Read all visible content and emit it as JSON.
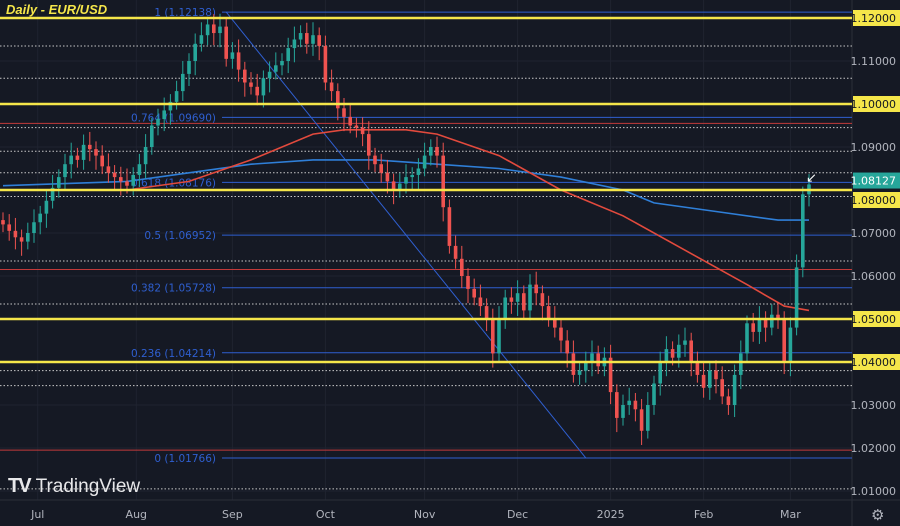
{
  "chart_data": {
    "type": "candlestick",
    "title": "Daily - EUR/USD",
    "ylim": [
      1.006,
      1.1235
    ],
    "y_ticks": [
      "1.12000",
      "1.11000",
      "1.10000",
      "1.09000",
      "1.08000",
      "1.07000",
      "1.06000",
      "1.05000",
      "1.04000",
      "1.03000",
      "1.02000",
      "1.01000"
    ],
    "y_tick_values": [
      1.12,
      1.11,
      1.1,
      1.09,
      1.08,
      1.07,
      1.06,
      1.05,
      1.04,
      1.03,
      1.02,
      1.01
    ],
    "highlighted_ticks": [
      1.12,
      1.1,
      1.08,
      1.05,
      1.04
    ],
    "current_price": {
      "label": "1.08127",
      "value": 1.08127,
      "color": "#26a69a"
    },
    "x_ticks": [
      {
        "label": "Jul",
        "index": 5.6
      },
      {
        "label": "Aug",
        "index": 21.5
      },
      {
        "label": "Sep",
        "index": 37
      },
      {
        "label": "Oct",
        "index": 52
      },
      {
        "label": "Nov",
        "index": 68
      },
      {
        "label": "Dec",
        "index": 83
      },
      {
        "label": "2025",
        "index": 98
      },
      {
        "label": "Feb",
        "index": 113
      },
      {
        "label": "Mar",
        "index": 127
      }
    ],
    "closes": [
      1.072,
      1.0705,
      1.069,
      1.068,
      1.07,
      1.0725,
      1.0745,
      1.0775,
      1.0805,
      1.083,
      1.086,
      1.088,
      1.087,
      1.0905,
      1.0895,
      1.088,
      1.0855,
      1.084,
      1.083,
      1.082,
      1.081,
      1.0835,
      1.086,
      1.09,
      1.095,
      1.0965,
      1.0985,
      1.1005,
      1.103,
      1.107,
      1.11,
      1.114,
      1.116,
      1.1185,
      1.1165,
      1.118,
      1.1105,
      1.112,
      1.108,
      1.105,
      1.104,
      1.102,
      1.106,
      1.1075,
      1.109,
      1.11,
      1.113,
      1.115,
      1.1165,
      1.114,
      1.116,
      1.1135,
      1.105,
      1.103,
      1.099,
      1.097,
      1.095,
      1.0945,
      1.093,
      1.088,
      1.086,
      1.084,
      1.082,
      1.08,
      1.0815,
      1.083,
      1.0835,
      1.085,
      1.088,
      1.09,
      1.088,
      1.076,
      1.067,
      1.064,
      1.06,
      1.057,
      1.055,
      1.053,
      1.05,
      1.042,
      1.05,
      1.055,
      1.054,
      1.056,
      1.052,
      1.058,
      1.056,
      1.053,
      1.05,
      1.048,
      1.045,
      1.042,
      1.037,
      1.038,
      1.04,
      1.042,
      1.039,
      1.041,
      1.033,
      1.027,
      1.03,
      1.031,
      1.029,
      1.024,
      1.03,
      1.035,
      1.04,
      1.043,
      1.041,
      1.044,
      1.045,
      1.04,
      1.037,
      1.034,
      1.038,
      1.036,
      1.032,
      1.03,
      1.037,
      1.042,
      1.049,
      1.047,
      1.05,
      1.048,
      1.051,
      1.05,
      1.04,
      1.048,
      1.062,
      1.079,
      1.0813
    ],
    "up_color": "#26a69a",
    "down_color": "#ef5350",
    "ma_red": [
      [
        0,
        1.08
      ],
      [
        20,
        1.08
      ],
      [
        30,
        1.082
      ],
      [
        40,
        1.087
      ],
      [
        50,
        1.093
      ],
      [
        55,
        1.094
      ],
      [
        65,
        1.094
      ],
      [
        70,
        1.093
      ],
      [
        80,
        1.088
      ],
      [
        90,
        1.08
      ],
      [
        100,
        1.074
      ],
      [
        110,
        1.066
      ],
      [
        120,
        1.058
      ],
      [
        126,
        1.053
      ],
      [
        130,
        1.052
      ]
    ],
    "ma_blue": [
      [
        0,
        1.081
      ],
      [
        20,
        1.082
      ],
      [
        30,
        1.084
      ],
      [
        40,
        1.086
      ],
      [
        50,
        1.087
      ],
      [
        60,
        1.087
      ],
      [
        70,
        1.086
      ],
      [
        80,
        1.085
      ],
      [
        90,
        1.083
      ],
      [
        100,
        1.08
      ],
      [
        105,
        1.077
      ],
      [
        115,
        1.075
      ],
      [
        125,
        1.073
      ],
      [
        130,
        1.073
      ]
    ],
    "yellow_levels": [
      1.12,
      1.1,
      1.08,
      1.05,
      1.04
    ],
    "red_levels": [
      1.0955,
      1.0615,
      1.0195
    ],
    "dotted_levels": [
      1.1135,
      1.106,
      1.0945,
      1.089,
      1.084,
      1.0785,
      1.0635,
      1.0535,
      1.038,
      1.0345,
      1.0105
    ],
    "fib_trendline": [
      [
        36,
        1.12138
      ],
      [
        94,
        1.0177
      ]
    ],
    "fib_levels": [
      {
        "label": "1 (1.12138)",
        "value": 1.12138
      },
      {
        "label": "0.764 (1.09690)",
        "value": 1.0969
      },
      {
        "label": "0.618 (1.08176)",
        "value": 1.08176
      },
      {
        "label": "0.5 (1.06952)",
        "value": 1.06952
      },
      {
        "label": "0.382 (1.05728)",
        "value": 1.05728
      },
      {
        "label": "0.236 (1.04214)",
        "value": 1.04214
      },
      {
        "label": "0 (1.01766)",
        "value": 1.01766
      }
    ]
  },
  "brand": "TradingView"
}
